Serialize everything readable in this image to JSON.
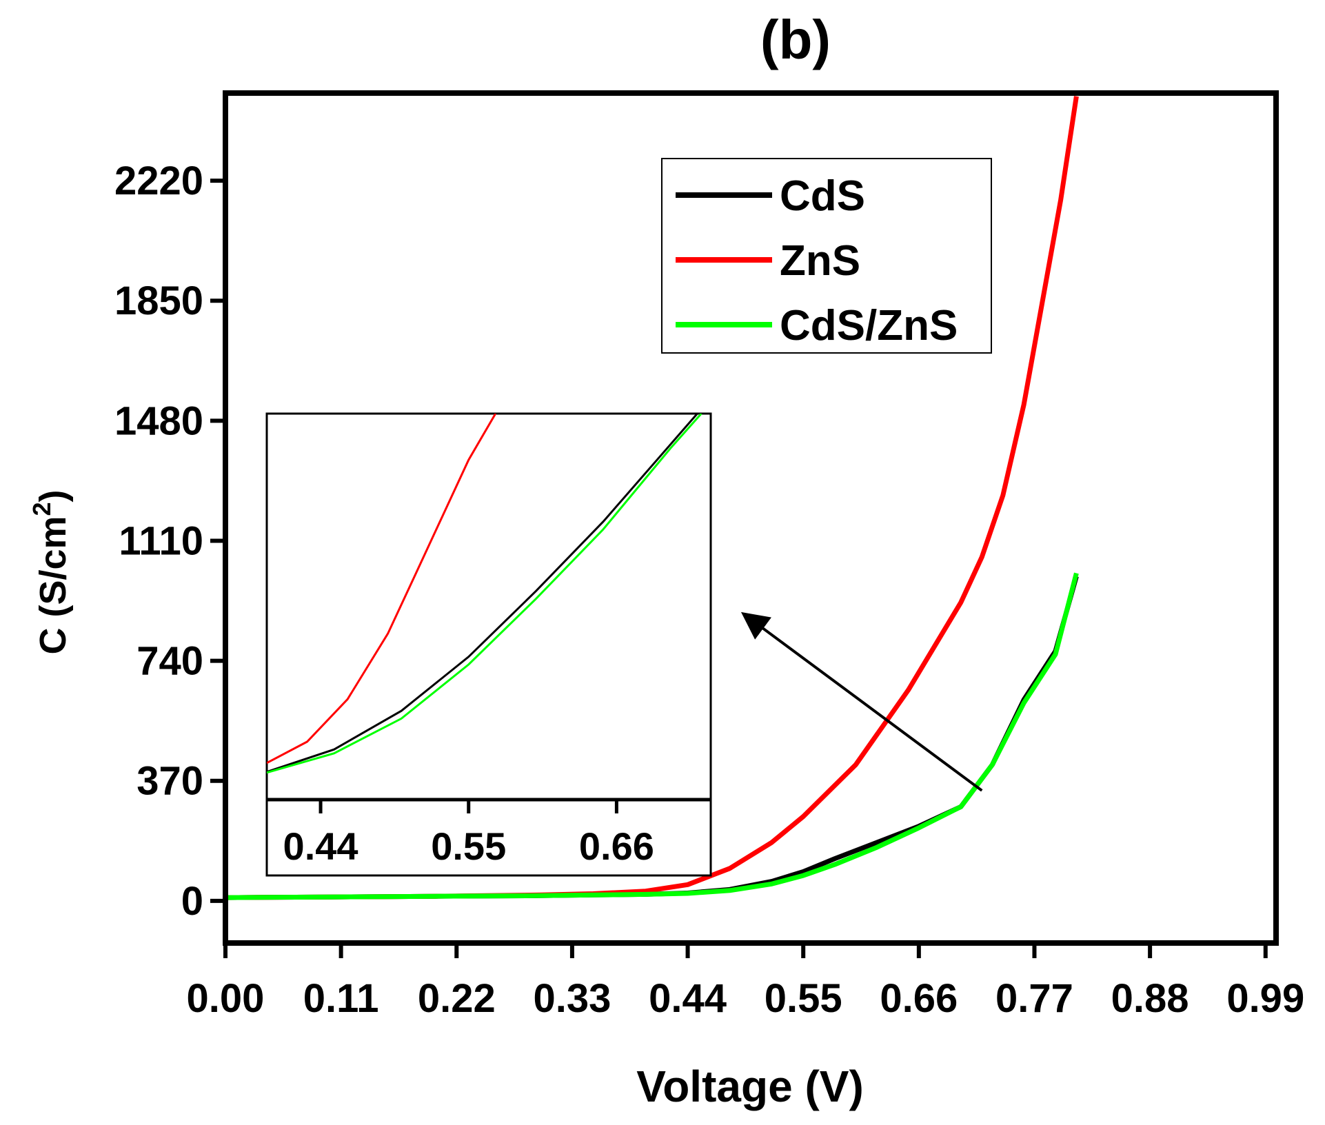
{
  "chart_data": {
    "type": "line",
    "title": "(b)",
    "xlabel": "Voltage (V)",
    "ylabel": "C (S/cm",
    "ylabel_superscript": "2",
    "ylabel_suffix": ")",
    "xlim": [
      0,
      1.0
    ],
    "ylim": [
      -130,
      2490
    ],
    "xticks": [
      0.0,
      0.11,
      0.22,
      0.33,
      0.44,
      0.55,
      0.66,
      0.77,
      0.88,
      0.99
    ],
    "xtick_labels": [
      "0.00",
      "0.11",
      "0.22",
      "0.33",
      "0.44",
      "0.55",
      "0.66",
      "0.77",
      "0.88",
      "0.99"
    ],
    "yticks": [
      0,
      370,
      740,
      1110,
      1480,
      1850,
      2220
    ],
    "ytick_labels": [
      "0",
      "370",
      "740",
      "1110",
      "1480",
      "1850",
      "2220"
    ],
    "legend_position": "top-right",
    "series": [
      {
        "name": "CdS",
        "color": "#000000",
        "x": [
          0,
          0.05,
          0.1,
          0.15,
          0.2,
          0.25,
          0.3,
          0.35,
          0.4,
          0.44,
          0.48,
          0.52,
          0.55,
          0.58,
          0.62,
          0.66,
          0.7,
          0.73,
          0.76,
          0.79,
          0.81
        ],
        "y": [
          10,
          11,
          12,
          13,
          14,
          15,
          16,
          18,
          20,
          24,
          35,
          60,
          90,
          130,
          180,
          230,
          290,
          420,
          620,
          770,
          1000
        ]
      },
      {
        "name": "ZnS",
        "color": "#ff0000",
        "x": [
          0,
          0.05,
          0.1,
          0.15,
          0.2,
          0.25,
          0.3,
          0.35,
          0.4,
          0.44,
          0.48,
          0.52,
          0.55,
          0.6,
          0.65,
          0.7,
          0.72,
          0.74,
          0.76,
          0.78,
          0.795,
          0.81
        ],
        "y": [
          10,
          11,
          12,
          13,
          14,
          16,
          18,
          22,
          30,
          50,
          100,
          180,
          260,
          420,
          650,
          920,
          1060,
          1250,
          1530,
          1890,
          2160,
          2480
        ]
      },
      {
        "name": "CdS/ZnS",
        "color": "#00ff00",
        "x": [
          0,
          0.05,
          0.1,
          0.15,
          0.2,
          0.25,
          0.3,
          0.35,
          0.4,
          0.44,
          0.48,
          0.52,
          0.55,
          0.58,
          0.62,
          0.66,
          0.7,
          0.73,
          0.76,
          0.79,
          0.81
        ],
        "y": [
          10,
          11,
          12,
          13,
          14,
          15,
          16,
          18,
          20,
          23,
          32,
          52,
          78,
          112,
          165,
          225,
          290,
          420,
          610,
          760,
          1010
        ]
      }
    ],
    "inset": {
      "xlim": [
        0.4,
        0.73
      ],
      "ylim": [
        0,
        1
      ],
      "xticks": [
        0.44,
        0.55,
        0.66
      ],
      "xtick_labels": [
        "0.44",
        "0.55",
        "0.66"
      ],
      "series": [
        {
          "name": "CdS",
          "color": "#000000",
          "x": [
            0.4,
            0.45,
            0.5,
            0.55,
            0.6,
            0.65,
            0.7,
            0.72
          ],
          "y": [
            0.072,
            0.13,
            0.23,
            0.37,
            0.54,
            0.72,
            0.92,
            1.0
          ]
        },
        {
          "name": "ZnS",
          "color": "#ff0000",
          "x": [
            0.4,
            0.43,
            0.46,
            0.49,
            0.51,
            0.53,
            0.55,
            0.57
          ],
          "y": [
            0.095,
            0.15,
            0.26,
            0.43,
            0.58,
            0.73,
            0.88,
            1.0
          ]
        },
        {
          "name": "CdS/ZnS",
          "color": "#00ff00",
          "x": [
            0.4,
            0.45,
            0.5,
            0.55,
            0.6,
            0.65,
            0.7,
            0.723
          ],
          "y": [
            0.07,
            0.12,
            0.21,
            0.35,
            0.52,
            0.7,
            0.91,
            1.0
          ]
        }
      ]
    },
    "annotation": {
      "type": "arrow",
      "from": [
        0.72,
        340
      ],
      "to": [
        0.495,
        880
      ]
    }
  }
}
